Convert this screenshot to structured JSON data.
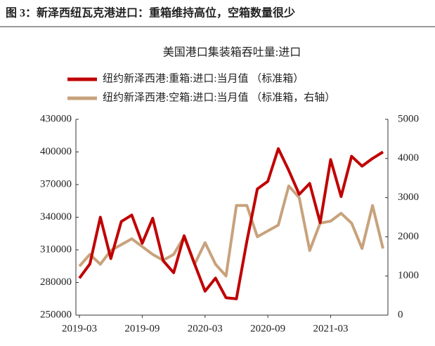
{
  "figure_title": "图 3：新泽西纽瓦克港进口：重箱维持高位，空箱数量很少",
  "chart_data": {
    "type": "line",
    "title": "美国港口集装箱吞吐量:进口",
    "categories": [
      "2019-03",
      null,
      null,
      null,
      null,
      null,
      "2019-09",
      null,
      null,
      null,
      null,
      null,
      "2020-03",
      null,
      null,
      null,
      null,
      null,
      "2020-09",
      null,
      null,
      null,
      null,
      null,
      "2021-03",
      null,
      null,
      null,
      null,
      null
    ],
    "series": [
      {
        "name": "纽约新泽西港:重箱:进口:当月值 （标准箱）",
        "color": "#c00000",
        "axis": "y",
        "values": [
          284000,
          297000,
          340000,
          302000,
          336000,
          342000,
          316000,
          339000,
          300000,
          289000,
          323000,
          297000,
          272000,
          284000,
          266000,
          265000,
          318000,
          366000,
          373000,
          403000,
          383000,
          361000,
          371000,
          335000,
          393000,
          359000,
          396000,
          387000,
          394000,
          400000
        ]
      },
      {
        "name": "纽约新泽西港:空箱:进口:当月值 （标准箱，右轴）",
        "color": "#c8a27c",
        "axis": "y2",
        "values": [
          1250,
          1550,
          1300,
          1650,
          1800,
          1950,
          1750,
          1550,
          1400,
          1550,
          2000,
          1300,
          1850,
          1300,
          1000,
          2800,
          2800,
          2000,
          2150,
          2300,
          3300,
          3000,
          1650,
          2350,
          2400,
          2600,
          2350,
          1700,
          2800,
          1700
        ]
      }
    ],
    "ylim": [
      250000,
      430000
    ],
    "yticks": [
      250000,
      280000,
      310000,
      340000,
      370000,
      400000,
      430000
    ],
    "y2lim": [
      0,
      5000
    ],
    "y2ticks": [
      0,
      1000,
      2000,
      3000,
      4000,
      5000
    ],
    "grid": false
  }
}
